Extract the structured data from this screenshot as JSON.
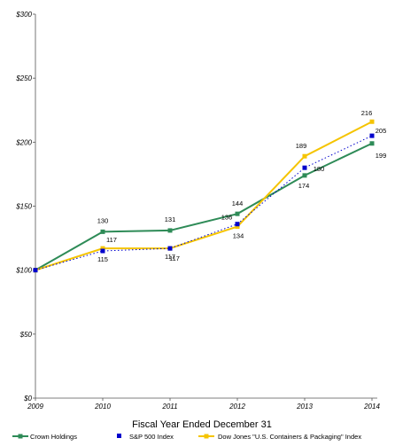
{
  "chart_data": {
    "type": "line",
    "title": "",
    "xlabel": "Fiscal Year Ended December 31",
    "ylabel": "",
    "x": [
      "2009",
      "2010",
      "2011",
      "2012",
      "2013",
      "2014"
    ],
    "ylim": [
      0,
      300
    ],
    "yticks": [
      "$0",
      "$50",
      "$100",
      "$150",
      "$200",
      "$250",
      "$300"
    ],
    "ytick_values": [
      0,
      50,
      100,
      150,
      200,
      250,
      300
    ],
    "grid": false,
    "legend_position": "bottom",
    "series": [
      {
        "name": "Crown Holdings",
        "values": [
          100,
          130,
          131,
          144,
          174,
          199
        ],
        "labels": [
          "",
          "130",
          "131",
          "144",
          "174",
          "199"
        ],
        "color": "#2e8b57",
        "style": "solid",
        "marker": "square"
      },
      {
        "name": "S&P 500 Index",
        "values": [
          100,
          115,
          117,
          136,
          180,
          205
        ],
        "labels": [
          "",
          "115",
          "117",
          "136",
          "180",
          "205"
        ],
        "color": "#0000cc",
        "style": "dotted",
        "marker": "square"
      },
      {
        "name": "Dow Jones \"U.S. Containers & Packaging\" Index",
        "values": [
          100,
          117,
          117,
          134,
          189,
          216
        ],
        "labels": [
          "",
          "117",
          "117",
          "134",
          "189",
          "216"
        ],
        "color": "#f5c400",
        "style": "solid",
        "marker": "square"
      }
    ]
  }
}
